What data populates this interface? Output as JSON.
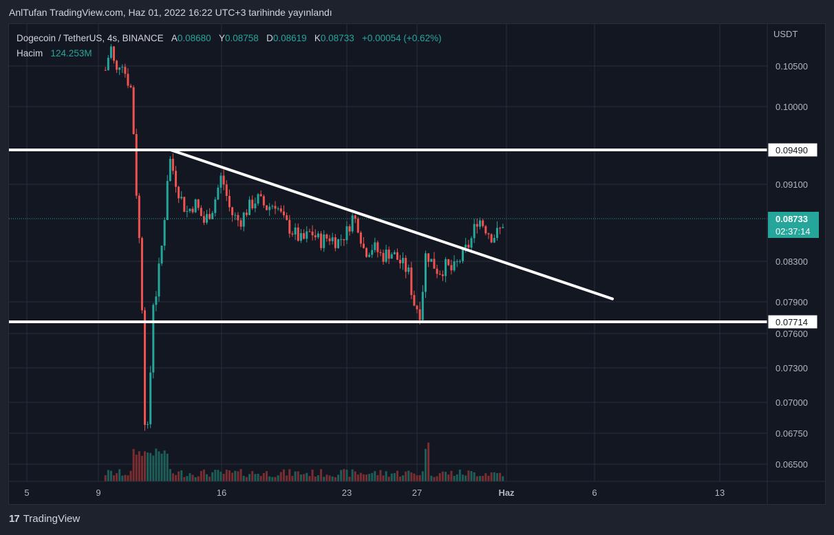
{
  "header": {
    "published": "AnlTufan TradingView.com, Haz 01, 2022 16:22 UTC+3 tarihinde yayınlandı"
  },
  "legend": {
    "symbol": "Dogecoin / TetherUS, 4s, BINANCE",
    "open_label": "A",
    "open": "0.08680",
    "high_label": "Y",
    "high": "0.08758",
    "low_label": "D",
    "low": "0.08619",
    "close_label": "K",
    "close": "0.08733",
    "change": "+0.00054 (+0.62%)",
    "volume_label": "Hacim",
    "volume": "124.253M"
  },
  "price_axis": {
    "currency": "USDT",
    "ticks": [
      "0.10500",
      "0.10000",
      "0.09100",
      "0.08300",
      "0.07900",
      "0.07600",
      "0.07300",
      "0.07000",
      "0.06750",
      "0.06500"
    ],
    "level_labels": [
      "0.09490",
      "0.07714"
    ],
    "current_price": "0.08733",
    "countdown": "02:37:14"
  },
  "time_axis": {
    "ticks": [
      "5",
      "9",
      "16",
      "23",
      "27",
      "Haz",
      "6",
      "13"
    ]
  },
  "footer": {
    "brand": "TradingView"
  },
  "colors": {
    "up": "#26a69a",
    "down": "#ef5350",
    "background": "#131722",
    "lines": "#ffffff"
  },
  "chart_data": {
    "type": "candlestick",
    "title": "Dogecoin / TetherUS, 4s, BINANCE",
    "y_unit": "USDT",
    "x_ticks": [
      "5",
      "9",
      "16",
      "23",
      "27",
      "Haz",
      "6",
      "13"
    ],
    "y_ticks": [
      0.105,
      0.1,
      0.091,
      0.083,
      0.079,
      0.076,
      0.073,
      0.07,
      0.0675,
      0.065
    ],
    "horizontal_levels": [
      0.0949,
      0.07714
    ],
    "descending_trendline": {
      "from": {
        "date": "May 13",
        "price": 0.0949
      },
      "to": {
        "date": "Jun 7",
        "price": 0.0793
      }
    },
    "current_price": 0.08733,
    "last_candle": {
      "open": 0.0868,
      "high": 0.08758,
      "low": 0.08619,
      "close": 0.08733,
      "volume": "124.253M"
    },
    "grid": true,
    "legend_position": "top-left"
  }
}
